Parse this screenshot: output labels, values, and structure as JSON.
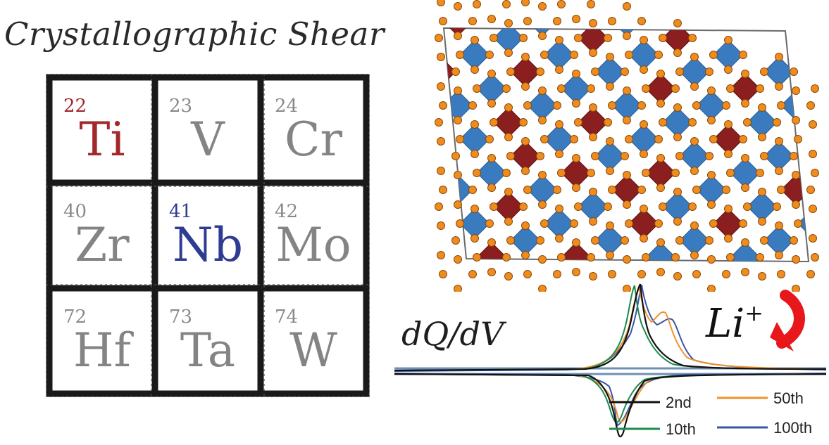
{
  "title": "Crystallographic Shear",
  "periodic_table": [
    {
      "number": "22",
      "symbol": "Ti",
      "highlight": "#a1282b"
    },
    {
      "number": "23",
      "symbol": "V"
    },
    {
      "number": "24",
      "symbol": "Cr"
    },
    {
      "number": "40",
      "symbol": "Zr"
    },
    {
      "number": "41",
      "symbol": "Nb",
      "highlight": "#2e3b93"
    },
    {
      "number": "42",
      "symbol": "Mo"
    },
    {
      "number": "72",
      "symbol": "Hf"
    },
    {
      "number": "73",
      "symbol": "Ta"
    },
    {
      "number": "74",
      "symbol": "W"
    }
  ],
  "crystal": {
    "octahedra_colors": {
      "blue": "#3a7bbf",
      "red": "#8b1e1e"
    },
    "oxygen_color": "#f08c1e"
  },
  "plot": {
    "ylabel": "dQ/dV",
    "ion_label": "Li",
    "ion_charge": "+",
    "arrow_color": "#e8171b",
    "legend": [
      {
        "label": "2nd",
        "color": "#111111"
      },
      {
        "label": "50th",
        "color": "#f0922a"
      },
      {
        "label": "10th",
        "color": "#1e8a4c"
      },
      {
        "label": "100th",
        "color": "#3a55a8"
      }
    ]
  }
}
